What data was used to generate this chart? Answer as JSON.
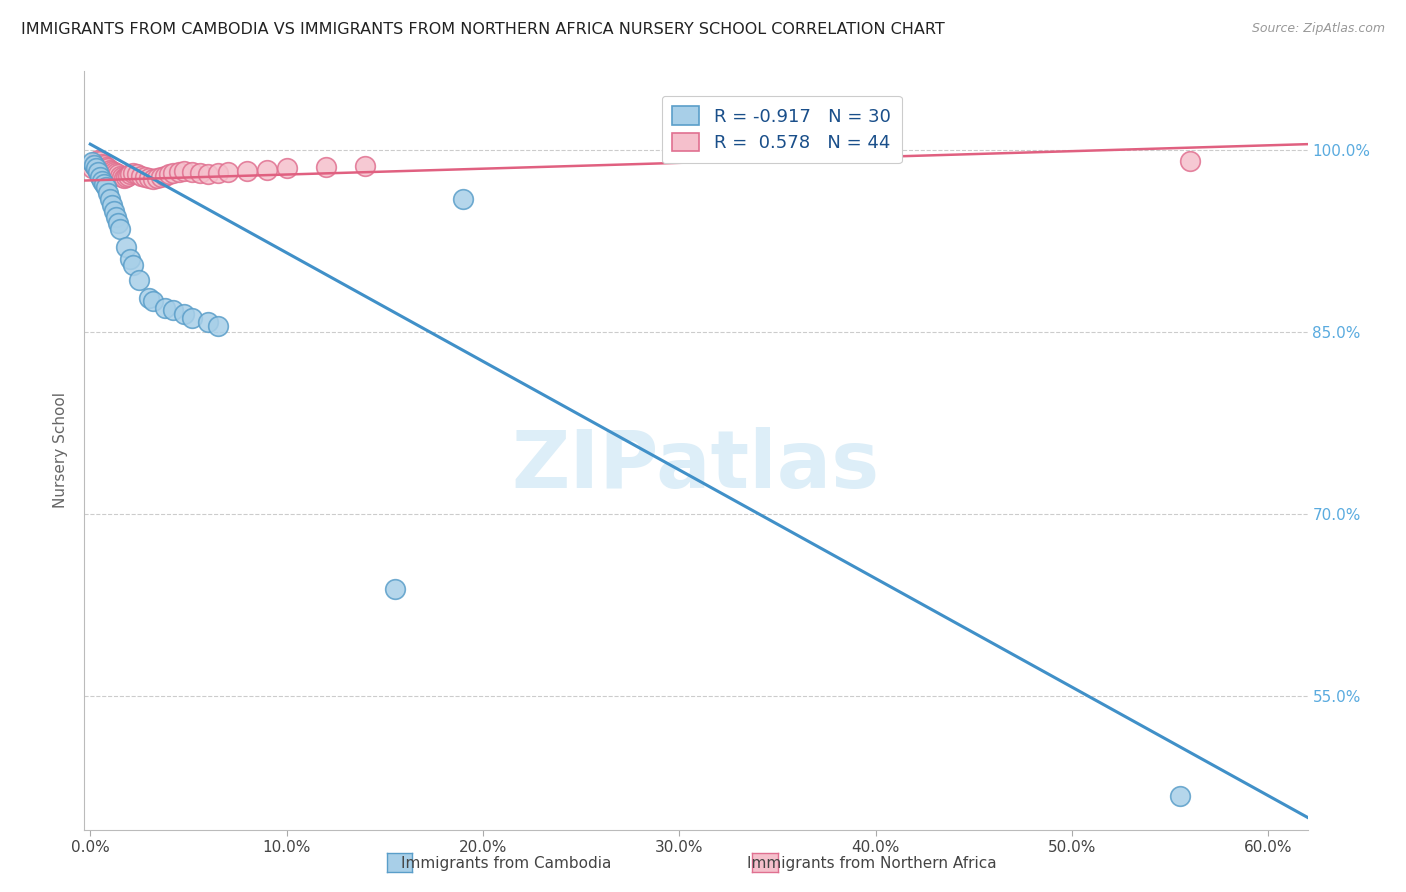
{
  "title": "IMMIGRANTS FROM CAMBODIA VS IMMIGRANTS FROM NORTHERN AFRICA NURSERY SCHOOL CORRELATION CHART",
  "source": "Source: ZipAtlas.com",
  "ylabel": "Nursery School",
  "ytick_labels": [
    "100.0%",
    "85.0%",
    "70.0%",
    "55.0%"
  ],
  "ytick_values": [
    1.0,
    0.85,
    0.7,
    0.55
  ],
  "xlim": [
    -0.003,
    0.62
  ],
  "ylim": [
    0.44,
    1.065
  ],
  "legend_entry1": "R = -0.917   N = 30",
  "legend_entry2": "R =  0.578   N = 44",
  "legend_label1": "Immigrants from Cambodia",
  "legend_label2": "Immigrants from Northern Africa",
  "blue_color": "#a8cfe8",
  "pink_color": "#f5c0cc",
  "blue_edge_color": "#5a9ec9",
  "pink_edge_color": "#e07090",
  "blue_line_color": "#4090c8",
  "pink_line_color": "#e06080",
  "watermark_color": "#ddeef8",
  "watermark": "ZIPatlas",
  "blue_scatter_x": [
    0.001,
    0.002,
    0.003,
    0.004,
    0.005,
    0.006,
    0.007,
    0.008,
    0.009,
    0.01,
    0.011,
    0.012,
    0.013,
    0.014,
    0.015,
    0.018,
    0.02,
    0.022,
    0.025,
    0.03,
    0.032,
    0.038,
    0.042,
    0.048,
    0.052,
    0.06,
    0.065,
    0.155,
    0.19,
    0.555
  ],
  "blue_scatter_y": [
    0.99,
    0.988,
    0.985,
    0.982,
    0.978,
    0.975,
    0.972,
    0.97,
    0.965,
    0.96,
    0.955,
    0.95,
    0.945,
    0.94,
    0.935,
    0.92,
    0.91,
    0.905,
    0.893,
    0.878,
    0.876,
    0.87,
    0.868,
    0.865,
    0.862,
    0.858,
    0.855,
    0.638,
    0.96,
    0.468
  ],
  "pink_scatter_x": [
    0.001,
    0.002,
    0.003,
    0.004,
    0.005,
    0.006,
    0.007,
    0.008,
    0.009,
    0.01,
    0.011,
    0.012,
    0.013,
    0.014,
    0.015,
    0.016,
    0.017,
    0.018,
    0.019,
    0.02,
    0.022,
    0.024,
    0.026,
    0.028,
    0.03,
    0.032,
    0.034,
    0.036,
    0.038,
    0.04,
    0.042,
    0.045,
    0.048,
    0.052,
    0.056,
    0.06,
    0.065,
    0.07,
    0.08,
    0.09,
    0.1,
    0.12,
    0.14,
    0.56
  ],
  "pink_scatter_y": [
    0.985,
    0.988,
    0.99,
    0.992,
    0.991,
    0.989,
    0.988,
    0.986,
    0.985,
    0.984,
    0.983,
    0.982,
    0.981,
    0.98,
    0.979,
    0.978,
    0.977,
    0.978,
    0.979,
    0.98,
    0.981,
    0.98,
    0.979,
    0.978,
    0.977,
    0.976,
    0.977,
    0.978,
    0.979,
    0.98,
    0.981,
    0.982,
    0.983,
    0.982,
    0.981,
    0.98,
    0.981,
    0.982,
    0.983,
    0.984,
    0.985,
    0.986,
    0.987,
    0.991
  ],
  "blue_trend_x": [
    0.0,
    0.62
  ],
  "blue_trend_y": [
    1.005,
    0.45
  ],
  "pink_trend_x": [
    -0.003,
    0.62
  ],
  "pink_trend_y": [
    0.975,
    1.005
  ],
  "xtick_vals": [
    0.0,
    0.1,
    0.2,
    0.3,
    0.4,
    0.5,
    0.6
  ],
  "xtick_labels": [
    "0.0%",
    "10.0%",
    "20.0%",
    "30.0%",
    "40.0%",
    "50.0%",
    "60.0%"
  ]
}
